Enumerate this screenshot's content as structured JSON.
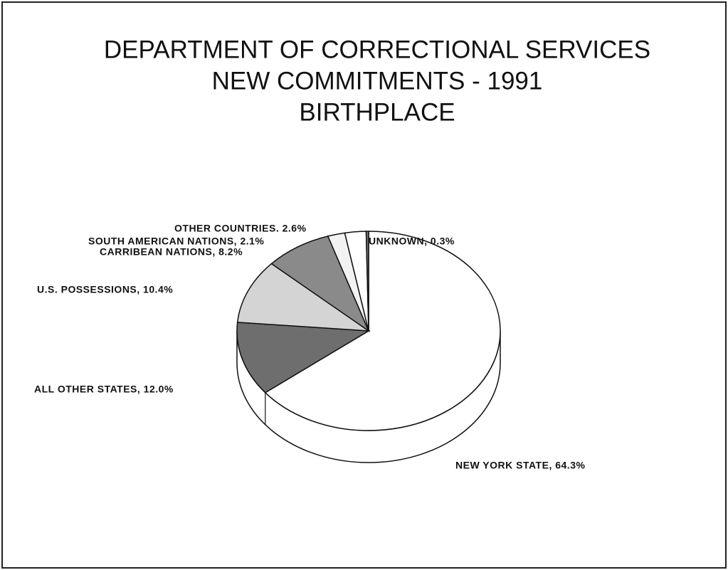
{
  "chart_data": {
    "type": "pie",
    "title": [
      "DEPARTMENT OF CORRECTIONAL SERVICES",
      "NEW COMMITMENTS - 1991",
      "BIRTHPLACE"
    ],
    "labels": [
      "NEW YORK STATE, 64.3%",
      "ALL OTHER STATES, 12.0%",
      "U.S. POSSESSIONS, 10.4%",
      "CARRIBEAN NATIONS, 8.2%",
      "SOUTH AMERICAN NATIONS, 2.1%",
      "OTHER COUNTRIES. 2.6%",
      "UNKNOWN, 0.3%"
    ],
    "values": [
      64.3,
      12.0,
      10.4,
      8.2,
      2.1,
      2.6,
      0.3
    ],
    "colors": [
      "#ffffff",
      "#6e6e6e",
      "#d4d4d4",
      "#8a8a8a",
      "#f2f2f2",
      "#ffffff",
      "#7a7a7a"
    ]
  }
}
